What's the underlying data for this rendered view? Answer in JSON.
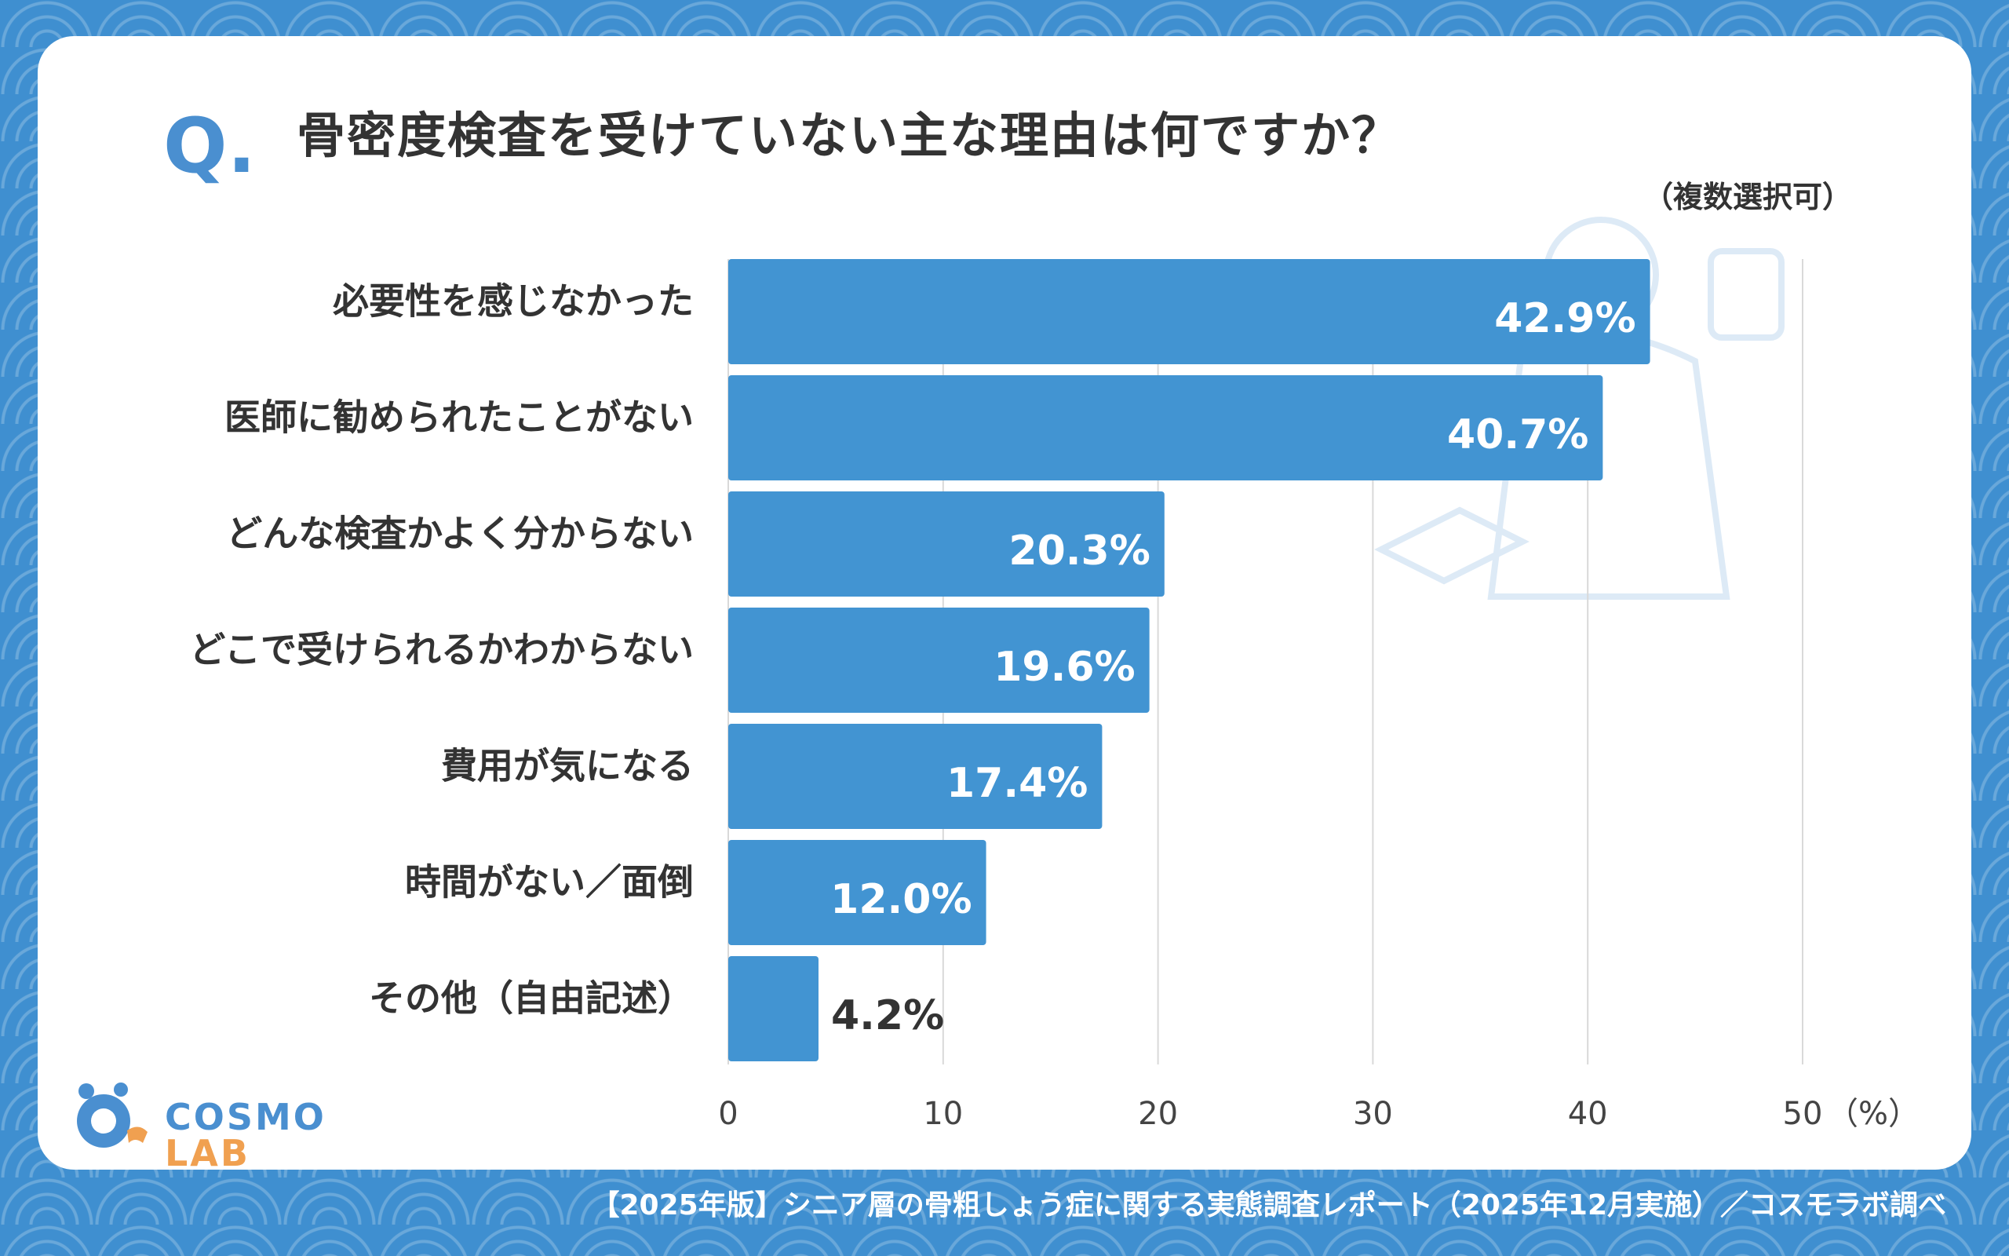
{
  "title": {
    "q_mark": "Q.",
    "question": "骨密度検査を受けていない主な理由は何ですか？",
    "note": "（複数選択可）"
  },
  "chart_data": {
    "type": "bar",
    "orientation": "horizontal",
    "categories": [
      "必要性を感じなかった",
      "医師に勧められたことがない",
      "どんな検査かよく分からない",
      "どこで受けられるかわからない",
      "費用が気になる",
      "時間がない／面倒",
      "その他（自由記述）"
    ],
    "values": [
      42.9,
      40.7,
      20.3,
      19.6,
      17.4,
      12.0,
      4.2
    ],
    "value_labels": [
      "42.9%",
      "40.7%",
      "20.3%",
      "19.6%",
      "17.4%",
      "12.0%",
      "4.2%"
    ],
    "xlim": [
      0,
      50
    ],
    "ticks": [
      0,
      10,
      20,
      30,
      40,
      50
    ],
    "tick_labels": [
      "0",
      "10",
      "20",
      "30",
      "40",
      "50"
    ],
    "unit_label": "（%）",
    "bar_color": "#4294d2",
    "grid": true
  },
  "logo": {
    "main": "COSMO",
    "sub": "LAB"
  },
  "footer": "【2025年版】シニア層の骨粗しょう症に関する実態調査レポート（2025年12月実施）／コスモラボ調べ",
  "colors": {
    "background": "#3f8fd0",
    "accent": "#4a8fd0",
    "text": "#333333"
  }
}
